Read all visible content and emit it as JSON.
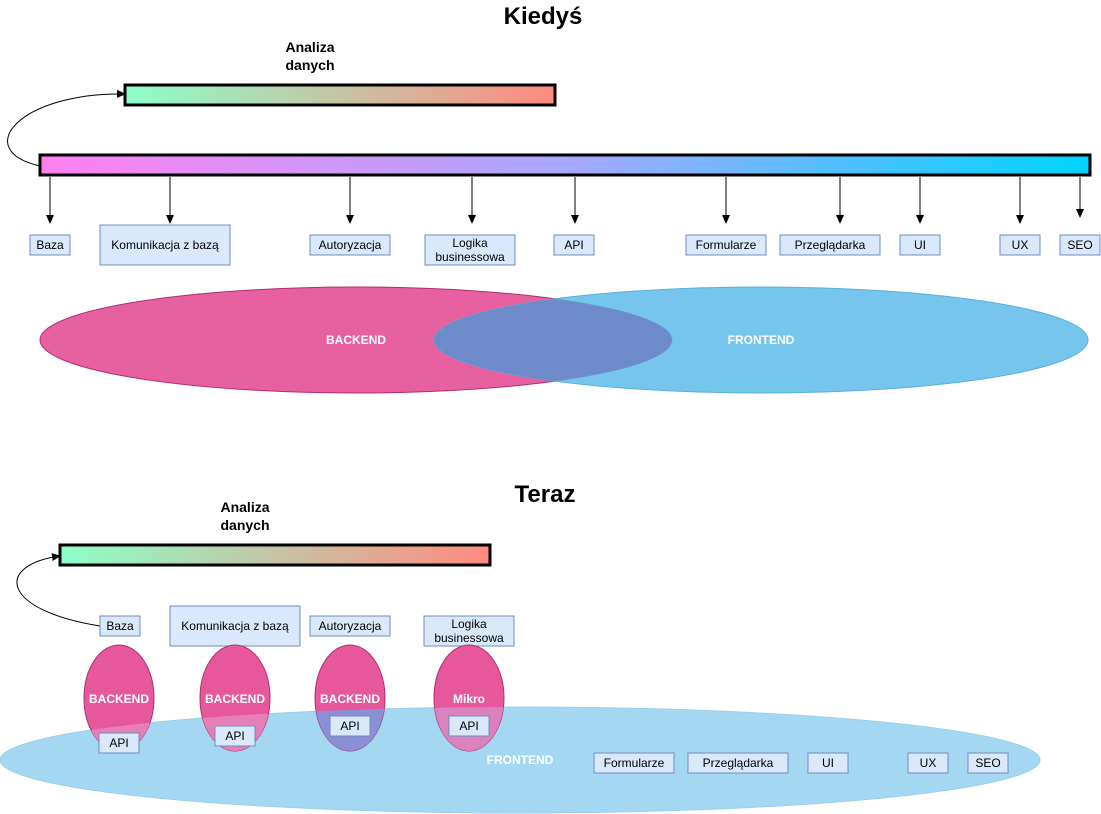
{
  "top": {
    "title": "Kiedyś",
    "analysis_label_line1": "Analiza",
    "analysis_label_line2": "danych",
    "boxes": {
      "baza": "Baza",
      "komunikacja": "Komunikacja z bazą",
      "autoryzacja": "Autoryzacja",
      "logika_line1": "Logika",
      "logika_line2": "businessowa",
      "api": "API",
      "formularze": "Formularze",
      "przegladarka": "Przeglądarka",
      "ui": "UI",
      "ux": "UX",
      "seo": "SEO"
    },
    "backend_label": "BACKEND",
    "frontend_label": "FRONTEND"
  },
  "bottom": {
    "title": "Teraz",
    "analysis_label_line1": "Analiza",
    "analysis_label_line2": "danych",
    "boxes": {
      "baza": "Baza",
      "komunikacja": "Komunikacja z bazą",
      "autoryzacja": "Autoryzacja",
      "logika_line1": "Logika",
      "logika_line2": "businessowa",
      "formularze": "Formularze",
      "przegladarka": "Przeglądarka",
      "ui": "UI",
      "ux": "UX",
      "seo": "SEO"
    },
    "services": [
      "BACKEND",
      "BACKEND",
      "BACKEND",
      "Mikro"
    ],
    "api_labels": [
      "API",
      "API",
      "API",
      "API"
    ],
    "frontend_label": "FRONTEND"
  },
  "colors": {
    "backend": "#e6579b",
    "frontend": "#6ec1ea",
    "box_fill": "#dae8fc",
    "box_stroke": "#6c8ebf",
    "bar_top_start": "#ff80f0",
    "bar_top_end": "#00d4ff",
    "analysis_start": "#8cffc8",
    "analysis_end": "#ff8080"
  }
}
